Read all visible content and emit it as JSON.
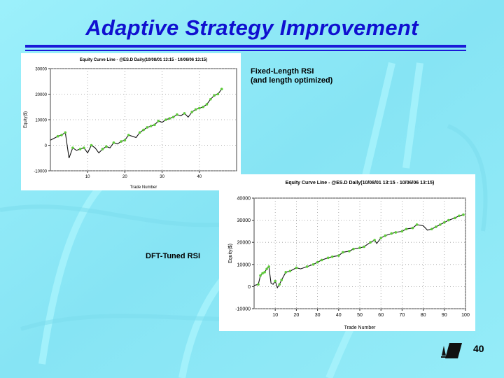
{
  "slide": {
    "title": "Adaptive Strategy Improvement",
    "caption_top": "Fixed-Length RSI",
    "caption_top_sub": "(and length optimized)",
    "caption_bottom": "DFT-Tuned RSI",
    "page_number": "40"
  },
  "colors": {
    "title": "#1010d0",
    "background": "#8fe9f7",
    "equity_line": "#111111",
    "highlight": "#5ecb3a"
  },
  "chart_data": [
    {
      "type": "line",
      "title": "Equity Curve Line - @ES.D Daily(10/08/01 13:15 - 10/06/06 13:15)",
      "xlabel": "Trade Number",
      "ylabel": "Equity($)",
      "x_ticks": [
        "10",
        "20",
        "30",
        "40"
      ],
      "y_ticks": [
        "30000",
        "20000",
        "10000",
        "0",
        "-10000"
      ],
      "xlim": [
        0,
        50
      ],
      "ylim": [
        -10000,
        30000
      ],
      "grid": true,
      "series": [
        {
          "x": [
            0,
            2,
            3,
            4,
            5,
            6,
            7,
            8,
            9,
            10,
            11,
            12,
            13,
            14,
            15,
            16,
            17,
            18,
            19,
            20,
            21,
            22,
            23,
            24,
            25,
            26,
            27,
            28,
            29,
            30,
            31,
            32,
            33,
            34,
            35,
            36,
            37,
            38,
            39,
            40,
            41,
            42,
            43,
            44,
            45,
            46
          ],
          "y": [
            2000,
            3500,
            4000,
            5000,
            -5000,
            -1000,
            -2000,
            -1500,
            -1000,
            -3000,
            0,
            -1000,
            -3000,
            -1500,
            -500,
            -1000,
            1000,
            500,
            1500,
            2000,
            4000,
            3500,
            3000,
            5000,
            6000,
            7000,
            7500,
            8000,
            9500,
            9000,
            10000,
            10500,
            11000,
            12000,
            11500,
            12500,
            11000,
            13000,
            14000,
            14500,
            15000,
            16000,
            18000,
            19500,
            20000,
            22000
          ]
        }
      ]
    },
    {
      "type": "line",
      "title": "Equity Curve Line - @ES.D Daily(10/08/01 13:15 - 10/06/06 13:15)",
      "xlabel": "Trade Number",
      "ylabel": "Equity($)",
      "x_ticks": [
        "10",
        "20",
        "30",
        "40",
        "50",
        "60",
        "70",
        "80",
        "90",
        "100"
      ],
      "y_ticks": [
        "40000",
        "30000",
        "20000",
        "10000",
        "0",
        "-10000"
      ],
      "xlim": [
        0,
        100
      ],
      "ylim": [
        -10000,
        40000
      ],
      "grid": true,
      "series": [
        {
          "x": [
            0,
            2,
            3,
            4,
            5,
            6,
            7,
            8,
            9,
            10,
            11,
            12,
            13,
            15,
            17,
            20,
            22,
            25,
            28,
            30,
            32,
            35,
            37,
            40,
            42,
            45,
            47,
            50,
            52,
            55,
            57,
            58,
            60,
            62,
            65,
            67,
            70,
            72,
            75,
            77,
            80,
            82,
            84,
            86,
            88,
            90,
            92,
            95,
            97,
            99
          ],
          "y": [
            500,
            1000,
            5000,
            6000,
            6500,
            8000,
            9000,
            1500,
            1000,
            2500,
            -500,
            1000,
            3000,
            6500,
            7000,
            8500,
            8000,
            9000,
            10000,
            11000,
            12000,
            13000,
            13500,
            14000,
            15500,
            16000,
            17000,
            17500,
            18000,
            20000,
            21000,
            19500,
            22000,
            23000,
            24000,
            24500,
            25000,
            26000,
            26500,
            28000,
            27500,
            25500,
            26000,
            27000,
            28000,
            29000,
            30000,
            31000,
            32000,
            32500
          ]
        }
      ]
    }
  ]
}
